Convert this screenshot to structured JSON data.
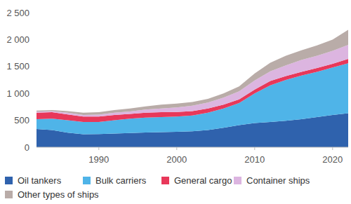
{
  "chart_data": {
    "type": "area",
    "stacked": true,
    "legend": "bottom",
    "grid": false,
    "x": [
      1982,
      1984,
      1986,
      1988,
      1990,
      1992,
      1994,
      1996,
      1998,
      2000,
      2002,
      2004,
      2006,
      2008,
      2010,
      2012,
      2014,
      2016,
      2018,
      2020,
      2022
    ],
    "xlim": [
      1982,
      2022
    ],
    "xticks": [
      1990,
      2000,
      2010,
      2020
    ],
    "ylim": [
      0,
      2500
    ],
    "yticks": [
      0,
      500,
      {
        "value": 1000,
        "label": "1 000"
      },
      {
        "value": 1500,
        "label": "1 500"
      },
      {
        "value": 2000,
        "label": "2 000"
      },
      {
        "value": 2500,
        "label": "2 500"
      }
    ],
    "series": [
      {
        "name": "Oil tankers",
        "color": "#2f62ad",
        "values": [
          340,
          320,
          270,
          240,
          245,
          255,
          265,
          275,
          280,
          285,
          295,
          320,
          360,
          410,
          450,
          470,
          490,
          520,
          560,
          600,
          630
        ]
      },
      {
        "name": "Bulk carriers",
        "color": "#4fb4e8",
        "values": [
          180,
          210,
          230,
          230,
          225,
          245,
          265,
          275,
          280,
          285,
          295,
          320,
          360,
          410,
          550,
          680,
          760,
          810,
          840,
          880,
          930
        ]
      },
      {
        "name": "General cargo",
        "color": "#e8385a",
        "values": [
          120,
          120,
          110,
          100,
          100,
          100,
          90,
          90,
          90,
          85,
          80,
          80,
          70,
          70,
          70,
          80,
          70,
          70,
          70,
          70,
          80
        ]
      },
      {
        "name": "Container ships",
        "color": "#dcb5e0",
        "values": [
          20,
          20,
          30,
          30,
          35,
          40,
          45,
          60,
          70,
          85,
          100,
          110,
          130,
          150,
          170,
          180,
          200,
          220,
          230,
          240,
          260
        ]
      },
      {
        "name": "Other types of ships",
        "color": "#b9aca8",
        "values": [
          20,
          20,
          30,
          40,
          45,
          50,
          55,
          60,
          70,
          70,
          70,
          70,
          80,
          90,
          130,
          160,
          180,
          180,
          190,
          210,
          280
        ]
      }
    ]
  }
}
